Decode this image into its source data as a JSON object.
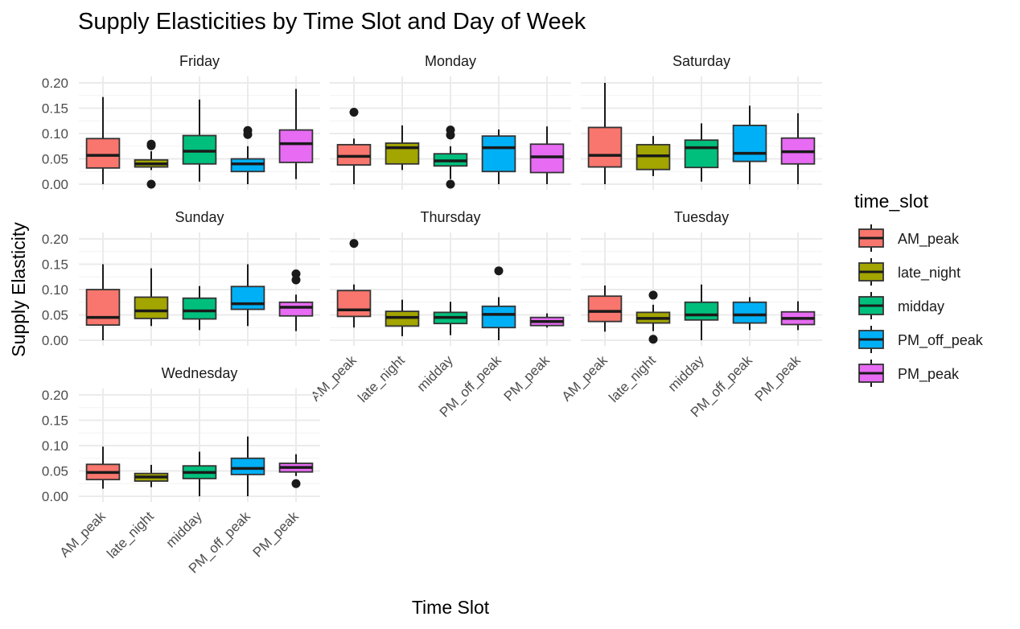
{
  "chart_data": {
    "type": "box",
    "title": "Supply Elasticities by Time Slot and Day of Week",
    "xlabel": "Time Slot",
    "ylabel": "Supply Elasticity",
    "ylim": [
      0,
      0.2
    ],
    "yticks": [
      "0.00",
      "0.05",
      "0.10",
      "0.15",
      "0.20"
    ],
    "ytick_values": [
      0,
      0.05,
      0.1,
      0.15,
      0.2
    ],
    "categories": [
      "AM_peak",
      "late_night",
      "midday",
      "PM_off_peak",
      "PM_peak"
    ],
    "colors": {
      "AM_peak": "#F8766D",
      "late_night": "#A3A500",
      "midday": "#00BF7D",
      "PM_off_peak": "#00B0F6",
      "PM_peak": "#E76BF3"
    },
    "legend": {
      "title": "time_slot",
      "items": [
        "AM_peak",
        "late_night",
        "midday",
        "PM_off_peak",
        "PM_peak"
      ]
    },
    "facets": [
      {
        "name": "Friday",
        "boxes": [
          {
            "cat": "AM_peak",
            "min": 0.0,
            "q1": 0.032,
            "med": 0.057,
            "q3": 0.09,
            "max": 0.172,
            "outliers": []
          },
          {
            "cat": "late_night",
            "min": 0.028,
            "q1": 0.034,
            "med": 0.04,
            "q3": 0.048,
            "max": 0.065,
            "outliers": [
              0.076,
              0.079,
              0.0
            ]
          },
          {
            "cat": "midday",
            "min": 0.005,
            "q1": 0.04,
            "med": 0.065,
            "q3": 0.096,
            "max": 0.167,
            "outliers": []
          },
          {
            "cat": "PM_off_peak",
            "min": 0.0,
            "q1": 0.025,
            "med": 0.04,
            "q3": 0.05,
            "max": 0.075,
            "outliers": [
              0.098,
              0.106
            ]
          },
          {
            "cat": "PM_peak",
            "min": 0.01,
            "q1": 0.043,
            "med": 0.08,
            "q3": 0.107,
            "max": 0.188,
            "outliers": []
          }
        ]
      },
      {
        "name": "Monday",
        "boxes": [
          {
            "cat": "AM_peak",
            "min": 0.0,
            "q1": 0.038,
            "med": 0.055,
            "q3": 0.078,
            "max": 0.09,
            "outliers": [
              0.142
            ]
          },
          {
            "cat": "late_night",
            "min": 0.028,
            "q1": 0.04,
            "med": 0.072,
            "q3": 0.081,
            "max": 0.116,
            "outliers": []
          },
          {
            "cat": "midday",
            "min": 0.01,
            "q1": 0.036,
            "med": 0.046,
            "q3": 0.06,
            "max": 0.075,
            "outliers": [
              0.097,
              0.107,
              0.0
            ]
          },
          {
            "cat": "PM_off_peak",
            "min": 0.0,
            "q1": 0.025,
            "med": 0.072,
            "q3": 0.095,
            "max": 0.108,
            "outliers": []
          },
          {
            "cat": "PM_peak",
            "min": 0.0,
            "q1": 0.023,
            "med": 0.054,
            "q3": 0.079,
            "max": 0.114,
            "outliers": []
          }
        ]
      },
      {
        "name": "Saturday",
        "boxes": [
          {
            "cat": "AM_peak",
            "min": 0.0,
            "q1": 0.034,
            "med": 0.057,
            "q3": 0.112,
            "max": 0.2,
            "outliers": []
          },
          {
            "cat": "late_night",
            "min": 0.016,
            "q1": 0.029,
            "med": 0.056,
            "q3": 0.078,
            "max": 0.095,
            "outliers": []
          },
          {
            "cat": "midday",
            "min": 0.005,
            "q1": 0.033,
            "med": 0.072,
            "q3": 0.087,
            "max": 0.12,
            "outliers": []
          },
          {
            "cat": "PM_off_peak",
            "min": 0.0,
            "q1": 0.045,
            "med": 0.061,
            "q3": 0.116,
            "max": 0.155,
            "outliers": []
          },
          {
            "cat": "PM_peak",
            "min": 0.0,
            "q1": 0.04,
            "med": 0.064,
            "q3": 0.091,
            "max": 0.14,
            "outliers": []
          }
        ]
      },
      {
        "name": "Sunday",
        "boxes": [
          {
            "cat": "AM_peak",
            "min": 0.0,
            "q1": 0.03,
            "med": 0.045,
            "q3": 0.1,
            "max": 0.15,
            "outliers": []
          },
          {
            "cat": "late_night",
            "min": 0.028,
            "q1": 0.043,
            "med": 0.058,
            "q3": 0.085,
            "max": 0.142,
            "outliers": []
          },
          {
            "cat": "midday",
            "min": 0.02,
            "q1": 0.042,
            "med": 0.058,
            "q3": 0.083,
            "max": 0.107,
            "outliers": []
          },
          {
            "cat": "PM_off_peak",
            "min": 0.028,
            "q1": 0.061,
            "med": 0.072,
            "q3": 0.106,
            "max": 0.15,
            "outliers": []
          },
          {
            "cat": "PM_peak",
            "min": 0.018,
            "q1": 0.048,
            "med": 0.065,
            "q3": 0.075,
            "max": 0.09,
            "outliers": [
              0.119,
              0.131
            ]
          }
        ]
      },
      {
        "name": "Thursday",
        "boxes": [
          {
            "cat": "AM_peak",
            "min": 0.025,
            "q1": 0.047,
            "med": 0.06,
            "q3": 0.098,
            "max": 0.11,
            "outliers": [
              0.191
            ]
          },
          {
            "cat": "late_night",
            "min": 0.008,
            "q1": 0.028,
            "med": 0.045,
            "q3": 0.057,
            "max": 0.08,
            "outliers": []
          },
          {
            "cat": "midday",
            "min": 0.01,
            "q1": 0.033,
            "med": 0.045,
            "q3": 0.055,
            "max": 0.076,
            "outliers": []
          },
          {
            "cat": "PM_off_peak",
            "min": 0.0,
            "q1": 0.025,
            "med": 0.051,
            "q3": 0.067,
            "max": 0.085,
            "outliers": [
              0.137
            ]
          },
          {
            "cat": "PM_peak",
            "min": 0.025,
            "q1": 0.029,
            "med": 0.037,
            "q3": 0.045,
            "max": 0.053,
            "outliers": []
          }
        ]
      },
      {
        "name": "Tuesday",
        "boxes": [
          {
            "cat": "AM_peak",
            "min": 0.017,
            "q1": 0.037,
            "med": 0.057,
            "q3": 0.087,
            "max": 0.108,
            "outliers": []
          },
          {
            "cat": "late_night",
            "min": 0.018,
            "q1": 0.034,
            "med": 0.043,
            "q3": 0.055,
            "max": 0.07,
            "outliers": [
              0.089,
              0.002
            ]
          },
          {
            "cat": "midday",
            "min": 0.0,
            "q1": 0.04,
            "med": 0.05,
            "q3": 0.075,
            "max": 0.11,
            "outliers": []
          },
          {
            "cat": "PM_off_peak",
            "min": 0.02,
            "q1": 0.034,
            "med": 0.05,
            "q3": 0.075,
            "max": 0.085,
            "outliers": []
          },
          {
            "cat": "PM_peak",
            "min": 0.02,
            "q1": 0.031,
            "med": 0.043,
            "q3": 0.056,
            "max": 0.077,
            "outliers": []
          }
        ]
      },
      {
        "name": "Wednesday",
        "boxes": [
          {
            "cat": "AM_peak",
            "min": 0.015,
            "q1": 0.033,
            "med": 0.047,
            "q3": 0.063,
            "max": 0.098,
            "outliers": []
          },
          {
            "cat": "late_night",
            "min": 0.018,
            "q1": 0.03,
            "med": 0.038,
            "q3": 0.045,
            "max": 0.062,
            "outliers": []
          },
          {
            "cat": "midday",
            "min": 0.0,
            "q1": 0.035,
            "med": 0.047,
            "q3": 0.06,
            "max": 0.088,
            "outliers": []
          },
          {
            "cat": "PM_off_peak",
            "min": 0.0,
            "q1": 0.043,
            "med": 0.055,
            "q3": 0.075,
            "max": 0.118,
            "outliers": []
          },
          {
            "cat": "PM_peak",
            "min": 0.04,
            "q1": 0.048,
            "med": 0.057,
            "q3": 0.065,
            "max": 0.083,
            "outliers": [
              0.025
            ]
          }
        ]
      }
    ]
  }
}
